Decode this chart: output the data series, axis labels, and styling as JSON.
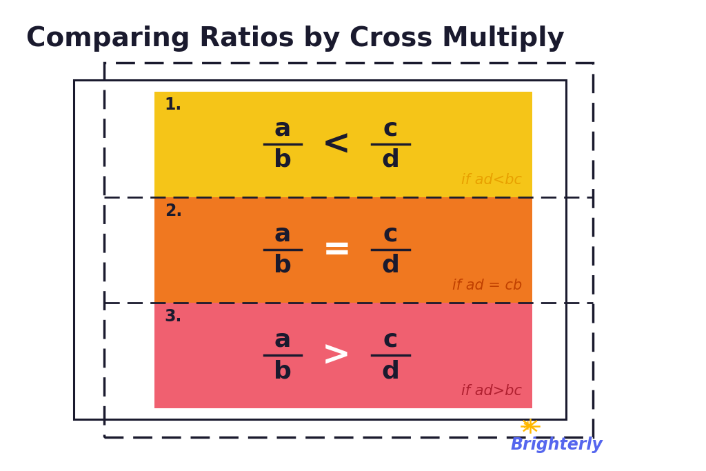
{
  "title": "Comparing Ratios by Cross Multiply",
  "title_fontsize": 28,
  "title_color": "#1a1a2e",
  "background_color": "#ffffff",
  "box1_color": "#F5C518",
  "box2_color": "#F07820",
  "box3_color": "#F06070",
  "box1_label": "1.",
  "box2_label": "2.",
  "box3_label": "3.",
  "box1_operator": "<",
  "box2_operator": "=",
  "box3_operator": ">",
  "box1_condition": "if ad<bc",
  "box2_condition": "if ad = cb",
  "box3_condition": "if ad>bc",
  "box1_cond_color": "#E8A000",
  "box2_cond_color": "#C04000",
  "box3_cond_color": "#B02030",
  "operator1_color": "#1a1a2e",
  "operator2_color": "#ffffff",
  "operator3_color": "#ffffff",
  "fraction_color": "#1a1a2e",
  "label_color": "#1a1a2e",
  "dashed_border_color": "#1a1a2e",
  "solid_rect_color": "#1a1a2e",
  "brighterly_color": "#5566ee",
  "sun_color": "#FFB800"
}
